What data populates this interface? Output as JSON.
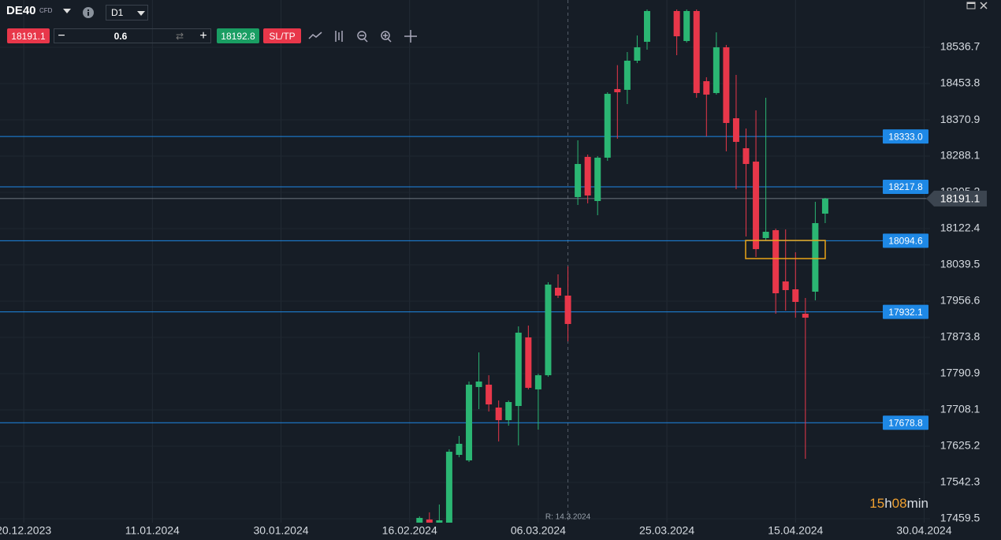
{
  "toolbar": {
    "symbol": "DE40",
    "instrument_type": "CFD",
    "timeframe": "D1",
    "sell_price": "18191.1",
    "quantity": "0.6",
    "buy_price": "18192.8",
    "sltp": "SL/TP"
  },
  "chart_data": {
    "type": "candlestick",
    "x": [
      40,
      41,
      42,
      43,
      44,
      45,
      46,
      47,
      48,
      49,
      50,
      51,
      52,
      53,
      54,
      55,
      56,
      57,
      58,
      59,
      60,
      61,
      62,
      63,
      66,
      67,
      68,
      69,
      70,
      71,
      72,
      73,
      74,
      75,
      76,
      77,
      78,
      79,
      80,
      81
    ],
    "open": [
      17450.5,
      17457.7,
      17450.5,
      17450.5,
      17605.4,
      17592.8,
      17760.4,
      17765.8,
      17713.5,
      17684.7,
      17717.1,
      17873.8,
      17755.0,
      17787.4,
      17987.3,
      17969.3,
      18194.5,
      18286.3,
      18185.5,
      18284.5,
      18441.3,
      18439.5,
      18506.1,
      18549.3,
      18619.6,
      18551.1,
      18619.6,
      18459.3,
      18432.2,
      18536.7,
      18374.6,
      18306.1,
      18275.5,
      18100.8,
      18118.8,
      18001.7,
      17983.7,
      17927.9,
      17978.3,
      18156.6
    ],
    "high": [
      17464.9,
      17474.0,
      17492.0,
      17618.1,
      17648.7,
      17773.0,
      17839.6,
      17787.4,
      17729.7,
      17729.7,
      17899.0,
      17900.9,
      17791.0,
      17999.9,
      18018.0,
      18036.0,
      18324.2,
      18291.7,
      18288.1,
      18434.0,
      18495.9,
      18525.9,
      18563.7,
      18623.2,
      18623.2,
      18623.2,
      18623.2,
      18468.3,
      18570.9,
      18542.1,
      18473.7,
      18351.2,
      18392.6,
      18421.4,
      18122.4,
      18120.6,
      18068.4,
      17963.9,
      18183.7,
      18192.7
    ],
    "low": [
      17450.5,
      17450.5,
      17450.5,
      17450.5,
      17600.0,
      17589.2,
      17709.9,
      17704.5,
      17636.1,
      17672.1,
      17627.1,
      17755.0,
      17663.1,
      17783.8,
      17963.9,
      17864.8,
      18176.5,
      18180.1,
      18153.0,
      18277.3,
      18327.8,
      18407.0,
      18500.7,
      18531.3,
      18518.7,
      18547.5,
      18421.4,
      18333.2,
      18428.6,
      18298.9,
      18212.5,
      18104.4,
      18057.6,
      18095.4,
      17927.9,
      17935.1,
      17918.9,
      17596.4,
      17958.5,
      18135.0
    ],
    "close": [
      17461.3,
      17450.5,
      17455.9,
      17612.6,
      17630.7,
      17765.8,
      17773.0,
      17720.7,
      17684.7,
      17726.1,
      17884.6,
      17758.6,
      17787.4,
      17994.5,
      17969.3,
      17904.5,
      18270.1,
      18198.1,
      18284.5,
      18430.4,
      18434.0,
      18506.1,
      18536.7,
      18619.6,
      18561.9,
      18619.6,
      18432.2,
      18428.6,
      18536.7,
      18363.8,
      18320.6,
      18270.1,
      18075.6,
      18115.2,
      17974.7,
      17981.9,
      17954.9,
      17918.9,
      18135.0,
      18191.1
    ],
    "up_color": "#2bb673",
    "down_color": "#e8374a",
    "xlim": [
      -2.4,
      91.6
    ],
    "xticks": [
      {
        "value": 0,
        "label": "20.12.2023"
      },
      {
        "value": 13,
        "label": "11.01.2024"
      },
      {
        "value": 26,
        "label": "30.01.2024"
      },
      {
        "value": 39,
        "label": "16.02.2024"
      },
      {
        "value": 52,
        "label": "06.03.2024"
      },
      {
        "value": 65,
        "label": "25.03.2024"
      },
      {
        "value": 78,
        "label": "15.04.2024"
      },
      {
        "value": 91,
        "label": "30.04.2024"
      }
    ],
    "ylim": [
      17450.5,
      18644.8
    ],
    "yticks": [
      18536.7,
      18453.8,
      18370.9,
      18288.1,
      18205.2,
      18122.4,
      18039.5,
      17956.6,
      17873.8,
      17790.9,
      17708.1,
      17625.2,
      17542.3,
      17459.5
    ],
    "hlines": [
      {
        "value": 18333,
        "label": "18333.0"
      },
      {
        "value": 18217.8,
        "label": "18217.8"
      },
      {
        "value": 18094.6,
        "label": "18094.6"
      },
      {
        "value": 17932.1,
        "label": "17932.1"
      },
      {
        "value": 17678.8,
        "label": "17678.8"
      }
    ],
    "hline_color": "#1e88e5",
    "current_price": 18191.1,
    "cursor_x": 55,
    "cursor_label": "R: 14.3.2024",
    "grid": true,
    "timer": {
      "hours": "15",
      "hours_unit": "h",
      "minutes": "08",
      "minutes_unit": "min"
    }
  }
}
